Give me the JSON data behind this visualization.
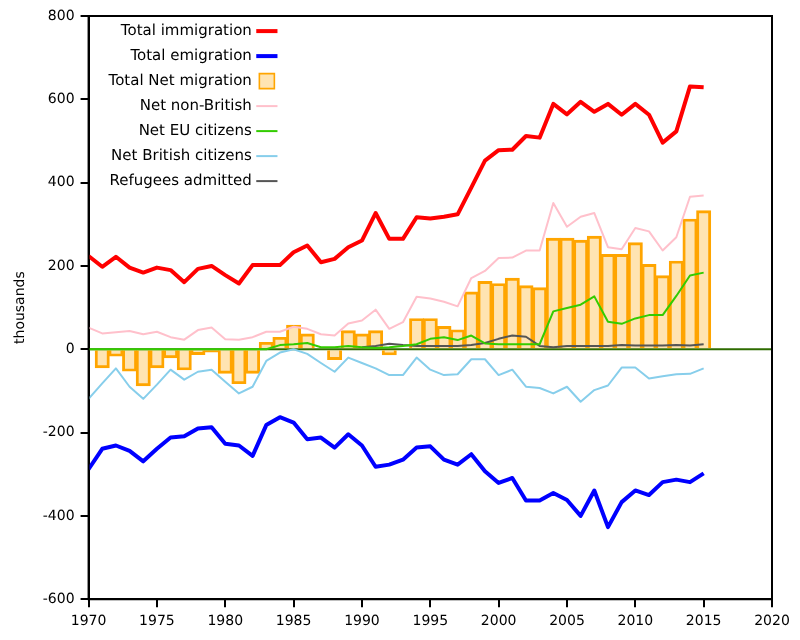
{
  "chart_data": {
    "type": "line",
    "ylabel": "thousands",
    "x": [
      1970,
      1971,
      1972,
      1973,
      1974,
      1975,
      1976,
      1977,
      1978,
      1979,
      1980,
      1981,
      1982,
      1983,
      1984,
      1985,
      1986,
      1987,
      1988,
      1989,
      1990,
      1991,
      1992,
      1993,
      1994,
      1995,
      1996,
      1997,
      1998,
      1999,
      2000,
      2001,
      2002,
      2003,
      2004,
      2005,
      2006,
      2007,
      2008,
      2009,
      2010,
      2011,
      2012,
      2013,
      2014,
      2015
    ],
    "series": [
      {
        "name": "Total immigration",
        "color": "#ff0000",
        "values": [
          224,
          198,
          222,
          196,
          184,
          196,
          190,
          161,
          193,
          200,
          178,
          158,
          202,
          202,
          202,
          233,
          249,
          209,
          217,
          245,
          261,
          327,
          265,
          265,
          317,
          314,
          318,
          324,
          388,
          453,
          478,
          479,
          512,
          508,
          589,
          564,
          594,
          570,
          589,
          563,
          589,
          563,
          496,
          523,
          631,
          629
        ]
      },
      {
        "name": "Total emigration",
        "color": "#0000ff",
        "values": [
          -288,
          -239,
          -231,
          -244,
          -269,
          -239,
          -212,
          -209,
          -190,
          -187,
          -227,
          -231,
          -256,
          -182,
          -163,
          -176,
          -216,
          -212,
          -236,
          -204,
          -231,
          -282,
          -277,
          -265,
          -236,
          -233,
          -265,
          -277,
          -252,
          -293,
          -321,
          -309,
          -363,
          -363,
          -345,
          -362,
          -400,
          -339,
          -427,
          -367,
          -339,
          -350,
          -319,
          -313,
          -319,
          -298
        ]
      },
      {
        "name": "Total Net migration",
        "type": "bar",
        "color": "#ffa500",
        "values": [
          null,
          -44,
          -16,
          -52,
          -87,
          -44,
          -20,
          -49,
          -12,
          -6,
          -57,
          -82,
          -57,
          16,
          28,
          57,
          36,
          0,
          -24,
          44,
          36,
          44,
          -13,
          0,
          73,
          73,
          54,
          46,
          137,
          162,
          157,
          170,
          152,
          147,
          266,
          266,
          261,
          271,
          227,
          227,
          255,
          203,
          176,
          211,
          312,
          332
        ]
      },
      {
        "name": "Net non-British",
        "color": "#ffc0cb",
        "values": [
          52,
          38,
          41,
          44,
          36,
          42,
          29,
          23,
          46,
          52,
          24,
          23,
          29,
          42,
          42,
          54,
          49,
          36,
          33,
          62,
          69,
          95,
          49,
          65,
          126,
          122,
          114,
          103,
          171,
          188,
          219,
          220,
          237,
          237,
          351,
          294,
          318,
          327,
          245,
          240,
          291,
          283,
          237,
          269,
          366,
          369
        ]
      },
      {
        "name": "Net EU citizens",
        "color": "#33cc00",
        "values": [
          0,
          0,
          0,
          0,
          0,
          0,
          0,
          0,
          0,
          0,
          0,
          0,
          0,
          0,
          10,
          12,
          15,
          5,
          5,
          8,
          5,
          3,
          5,
          8,
          12,
          25,
          29,
          22,
          33,
          14,
          12,
          12,
          12,
          12,
          91,
          99,
          107,
          127,
          66,
          61,
          74,
          82,
          82,
          128,
          177,
          184
        ]
      },
      {
        "name": "Net British citizens",
        "color": "#87ceeb",
        "values": [
          -119,
          -82,
          -46,
          -90,
          -119,
          -85,
          -49,
          -73,
          -54,
          -49,
          -78,
          -106,
          -90,
          -28,
          -8,
          0,
          -11,
          -33,
          -54,
          -20,
          -33,
          -46,
          -62,
          -62,
          -20,
          -49,
          -62,
          -60,
          -24,
          -24,
          -62,
          -49,
          -90,
          -93,
          -106,
          -90,
          -126,
          -98,
          -87,
          -44,
          -44,
          -70,
          -65,
          -60,
          -59,
          -46
        ]
      },
      {
        "name": "Refugees admitted",
        "color": "#555555",
        "values": [
          null,
          null,
          null,
          null,
          null,
          null,
          null,
          null,
          null,
          null,
          null,
          null,
          null,
          null,
          null,
          null,
          null,
          null,
          null,
          null,
          5,
          8,
          13,
          10,
          8,
          8,
          8,
          8,
          10,
          15,
          25,
          33,
          30,
          8,
          5,
          8,
          8,
          8,
          8,
          10,
          9,
          9,
          9,
          10,
          9,
          12
        ]
      }
    ],
    "ref_lines": [
      {
        "axis": "y",
        "value": 0,
        "color": "#2e6b00"
      }
    ],
    "xlim": [
      1970,
      2020
    ],
    "xticks": [
      1970,
      1975,
      1980,
      1985,
      1990,
      1995,
      2000,
      2005,
      2010,
      2015,
      2020
    ],
    "ylim": [
      -600,
      800
    ],
    "yticks": [
      -600,
      -400,
      -200,
      0,
      200,
      400,
      600,
      800
    ],
    "grid": false,
    "legend": "top left",
    "marker": "none"
  }
}
